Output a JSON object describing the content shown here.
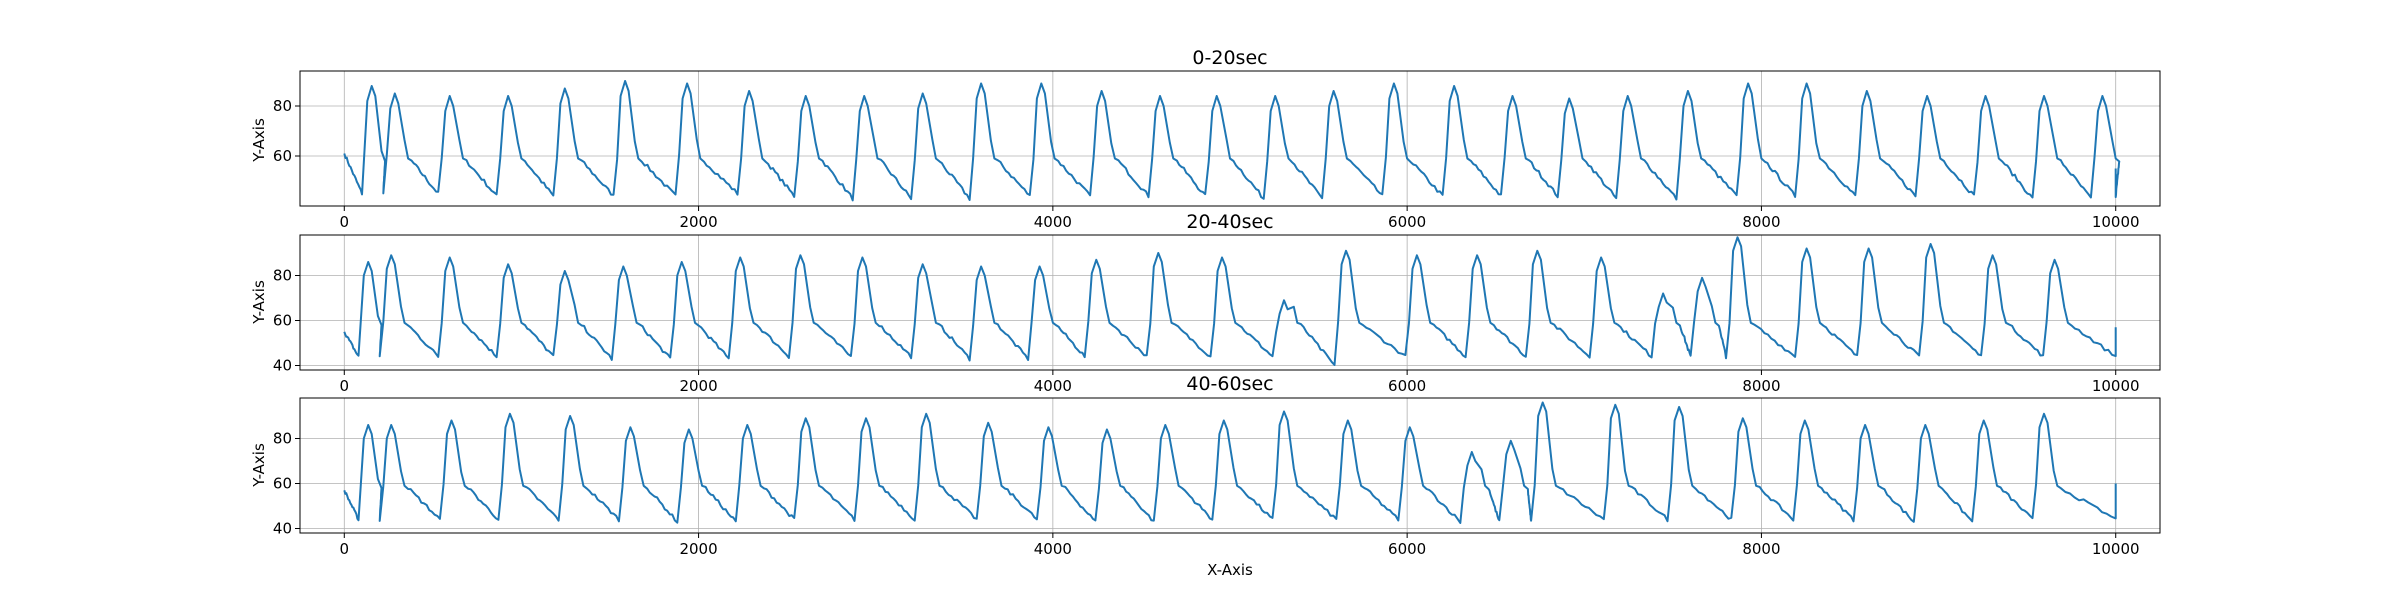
{
  "chart_data": [
    {
      "type": "line",
      "title": "0-20sec",
      "xlabel": "",
      "ylabel": "Y-Axis",
      "xlim": [
        -250,
        10250
      ],
      "ylim": [
        40,
        94
      ],
      "xticks": [
        0,
        2000,
        4000,
        6000,
        8000,
        10000
      ],
      "yticks": [
        60,
        80
      ],
      "grid": true,
      "legend": "none",
      "color": "#1f77b4",
      "series": [
        {
          "beats": [
            {
              "start": 0,
              "peak": 88,
              "trough": 45
            },
            {
              "start": 220,
              "peak": 85,
              "trough": 45
            },
            {
              "start": 530,
              "peak": 84,
              "trough": 44
            },
            {
              "start": 860,
              "peak": 84,
              "trough": 44
            },
            {
              "start": 1180,
              "peak": 87,
              "trough": 44
            },
            {
              "start": 1520,
              "peak": 90,
              "trough": 44
            },
            {
              "start": 1870,
              "peak": 89,
              "trough": 45
            },
            {
              "start": 2220,
              "peak": 86,
              "trough": 44
            },
            {
              "start": 2540,
              "peak": 84,
              "trough": 43
            },
            {
              "start": 2870,
              "peak": 84,
              "trough": 43
            },
            {
              "start": 3200,
              "peak": 85,
              "trough": 43
            },
            {
              "start": 3530,
              "peak": 89,
              "trough": 44
            },
            {
              "start": 3870,
              "peak": 89,
              "trough": 44
            },
            {
              "start": 4210,
              "peak": 86,
              "trough": 44
            },
            {
              "start": 4540,
              "peak": 84,
              "trough": 44
            },
            {
              "start": 4860,
              "peak": 84,
              "trough": 43
            },
            {
              "start": 5190,
              "peak": 84,
              "trough": 43
            },
            {
              "start": 5520,
              "peak": 86,
              "trough": 44
            },
            {
              "start": 5860,
              "peak": 89,
              "trough": 44
            },
            {
              "start": 6200,
              "peak": 88,
              "trough": 44
            },
            {
              "start": 6530,
              "peak": 84,
              "trough": 44
            },
            {
              "start": 6850,
              "peak": 83,
              "trough": 43
            },
            {
              "start": 7180,
              "peak": 84,
              "trough": 43
            },
            {
              "start": 7520,
              "peak": 86,
              "trough": 44
            },
            {
              "start": 7860,
              "peak": 89,
              "trough": 44
            },
            {
              "start": 8190,
              "peak": 89,
              "trough": 44
            },
            {
              "start": 8530,
              "peak": 86,
              "trough": 44
            },
            {
              "start": 8870,
              "peak": 84,
              "trough": 44
            },
            {
              "start": 9200,
              "peak": 84,
              "trough": 43
            },
            {
              "start": 9530,
              "peak": 84,
              "trough": 43
            },
            {
              "start": 9860,
              "peak": 84,
              "trough": 44
            }
          ],
          "first_value": 61,
          "end_value": 55,
          "end_x": 10000
        }
      ]
    },
    {
      "type": "line",
      "title": "20-40sec",
      "xlabel": "",
      "ylabel": "Y-Axis",
      "xlim": [
        -250,
        10250
      ],
      "ylim": [
        38,
        98
      ],
      "xticks": [
        0,
        2000,
        4000,
        6000,
        8000,
        10000
      ],
      "yticks": [
        40,
        60,
        80
      ],
      "grid": true,
      "legend": "none",
      "color": "#1f77b4",
      "series": [
        {
          "beats": [
            {
              "start": 0,
              "peak": 86,
              "trough": 44
            },
            {
              "start": 200,
              "peak": 89,
              "trough": 44
            },
            {
              "start": 530,
              "peak": 88,
              "trough": 44
            },
            {
              "start": 860,
              "peak": 85,
              "trough": 44
            },
            {
              "start": 1180,
              "peak": 82,
              "trough": 43
            },
            {
              "start": 1510,
              "peak": 84,
              "trough": 43
            },
            {
              "start": 1840,
              "peak": 86,
              "trough": 43
            },
            {
              "start": 2170,
              "peak": 88,
              "trough": 44
            },
            {
              "start": 2510,
              "peak": 89,
              "trough": 44
            },
            {
              "start": 2860,
              "peak": 88,
              "trough": 44
            },
            {
              "start": 3200,
              "peak": 85,
              "trough": 43
            },
            {
              "start": 3530,
              "peak": 84,
              "trough": 43
            },
            {
              "start": 3860,
              "peak": 84,
              "trough": 44
            },
            {
              "start": 4180,
              "peak": 87,
              "trough": 44
            },
            {
              "start": 4530,
              "peak": 90,
              "trough": 44
            },
            {
              "start": 4890,
              "peak": 88,
              "trough": 44
            },
            {
              "start": 5240,
              "peak": 69,
              "trough": 40
            },
            {
              "start": 5590,
              "peak": 91,
              "trough": 44
            },
            {
              "start": 5990,
              "peak": 89,
              "trough": 44
            },
            {
              "start": 6330,
              "peak": 89,
              "trough": 44
            },
            {
              "start": 6670,
              "peak": 91,
              "trough": 44
            },
            {
              "start": 7030,
              "peak": 88,
              "trough": 44
            },
            {
              "start": 7380,
              "peak": 72,
              "trough": 44
            },
            {
              "start": 7600,
              "peak": 79,
              "trough": 44
            },
            {
              "start": 7800,
              "peak": 97,
              "trough": 44
            },
            {
              "start": 8190,
              "peak": 92,
              "trough": 44
            },
            {
              "start": 8540,
              "peak": 92,
              "trough": 44
            },
            {
              "start": 8890,
              "peak": 94,
              "trough": 44
            },
            {
              "start": 9240,
              "peak": 89,
              "trough": 44
            },
            {
              "start": 9590,
              "peak": 87,
              "trough": 44
            }
          ],
          "first_value": 55,
          "end_value": 57,
          "end_x": 10000
        }
      ]
    },
    {
      "type": "line",
      "title": "40-60sec",
      "xlabel": "X-Axis",
      "ylabel": "Y-Axis",
      "xlim": [
        -250,
        10250
      ],
      "ylim": [
        38,
        98
      ],
      "xticks": [
        0,
        2000,
        4000,
        6000,
        8000,
        10000
      ],
      "yticks": [
        40,
        60,
        80
      ],
      "grid": true,
      "legend": "none",
      "color": "#1f77b4",
      "series": [
        {
          "beats": [
            {
              "start": 0,
              "peak": 86,
              "trough": 44
            },
            {
              "start": 200,
              "peak": 86,
              "trough": 44
            },
            {
              "start": 540,
              "peak": 88,
              "trough": 44
            },
            {
              "start": 870,
              "peak": 91,
              "trough": 44
            },
            {
              "start": 1210,
              "peak": 90,
              "trough": 44
            },
            {
              "start": 1550,
              "peak": 85,
              "trough": 43
            },
            {
              "start": 1880,
              "peak": 84,
              "trough": 43
            },
            {
              "start": 2210,
              "peak": 86,
              "trough": 44
            },
            {
              "start": 2540,
              "peak": 89,
              "trough": 44
            },
            {
              "start": 2880,
              "peak": 89,
              "trough": 44
            },
            {
              "start": 3220,
              "peak": 91,
              "trough": 44
            },
            {
              "start": 3570,
              "peak": 87,
              "trough": 44
            },
            {
              "start": 3910,
              "peak": 85,
              "trough": 43
            },
            {
              "start": 4240,
              "peak": 84,
              "trough": 43
            },
            {
              "start": 4570,
              "peak": 86,
              "trough": 44
            },
            {
              "start": 4900,
              "peak": 88,
              "trough": 44
            },
            {
              "start": 5240,
              "peak": 92,
              "trough": 44
            },
            {
              "start": 5600,
              "peak": 88,
              "trough": 44
            },
            {
              "start": 5950,
              "peak": 85,
              "trough": 43
            },
            {
              "start": 6300,
              "peak": 74,
              "trough": 43
            },
            {
              "start": 6520,
              "peak": 79,
              "trough": 43
            },
            {
              "start": 6700,
              "peak": 96,
              "trough": 44
            },
            {
              "start": 7110,
              "peak": 95,
              "trough": 44
            },
            {
              "start": 7470,
              "peak": 94,
              "trough": 44
            },
            {
              "start": 7830,
              "peak": 89,
              "trough": 44
            },
            {
              "start": 8180,
              "peak": 88,
              "trough": 44
            },
            {
              "start": 8520,
              "peak": 86,
              "trough": 43
            },
            {
              "start": 8860,
              "peak": 86,
              "trough": 43
            },
            {
              "start": 9190,
              "peak": 88,
              "trough": 44
            },
            {
              "start": 9530,
              "peak": 91,
              "trough": 44
            }
          ],
          "first_value": 57,
          "end_value": 60,
          "end_x": 10000
        }
      ]
    }
  ]
}
